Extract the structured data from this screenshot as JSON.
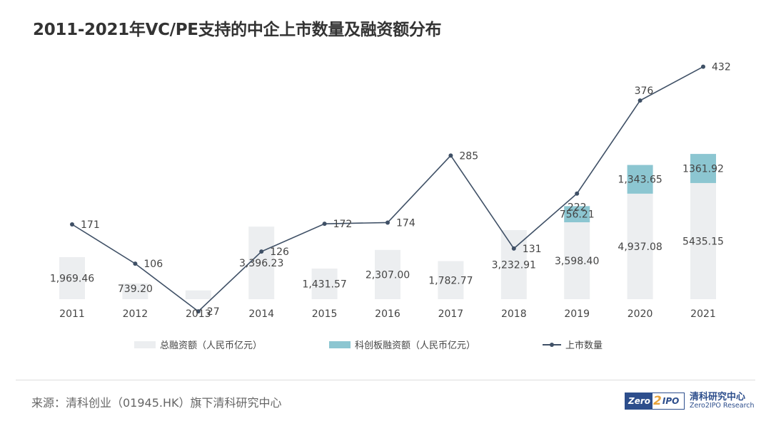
{
  "title": "2011-2021年VC/PE支持的中企上市数量及融资额分布",
  "chart_data": {
    "type": "bar",
    "categories": [
      "2011",
      "2012",
      "2013",
      "2014",
      "2015",
      "2016",
      "2017",
      "2018",
      "2019",
      "2020",
      "2021"
    ],
    "series": [
      {
        "name": "总融资额（人民币亿元）",
        "type": "bar",
        "color": "#eceef0",
        "values": [
          1969.46,
          739.2,
          410,
          3396.23,
          1431.57,
          2307.0,
          1782.77,
          3232.91,
          3598.4,
          4937.08,
          5435.15
        ],
        "labels": [
          "1,969.46",
          "739.20",
          "",
          "3,396.23",
          "1,431.57",
          "2,307.00",
          "1,782.77",
          "3,232.91",
          "3,598.40",
          "4,937.08",
          "5435.15"
        ]
      },
      {
        "name": "科创板融资额（人民币亿元）",
        "type": "stacked_bar",
        "color": "#8cc6d1",
        "values": [
          null,
          null,
          null,
          null,
          null,
          null,
          null,
          null,
          756.21,
          1343.65,
          1361.92
        ],
        "labels": [
          "",
          "",
          "",
          "",
          "",
          "",
          "",
          "",
          "756.21",
          "1,343.65",
          "1361.92"
        ]
      },
      {
        "name": "上市数量",
        "type": "line",
        "color": "#3f5066",
        "values": [
          171,
          106,
          27,
          126,
          172,
          174,
          285,
          131,
          222,
          376,
          432
        ],
        "labels": [
          "171",
          "106",
          "27",
          "126",
          "172",
          "174",
          "285",
          "131",
          "222",
          "376",
          "432"
        ]
      }
    ],
    "legend_position": "bottom",
    "grid": false
  },
  "source": "来源：清科创业（01945.HK）旗下清科研究中心",
  "logo": {
    "part1": "Zero",
    "part2": "2",
    "part3": "IPO",
    "cn": "清科研究中心",
    "en": "Zero2IPO Research",
    "color": "#2d4e8c",
    "accent": "#e8a33a"
  }
}
